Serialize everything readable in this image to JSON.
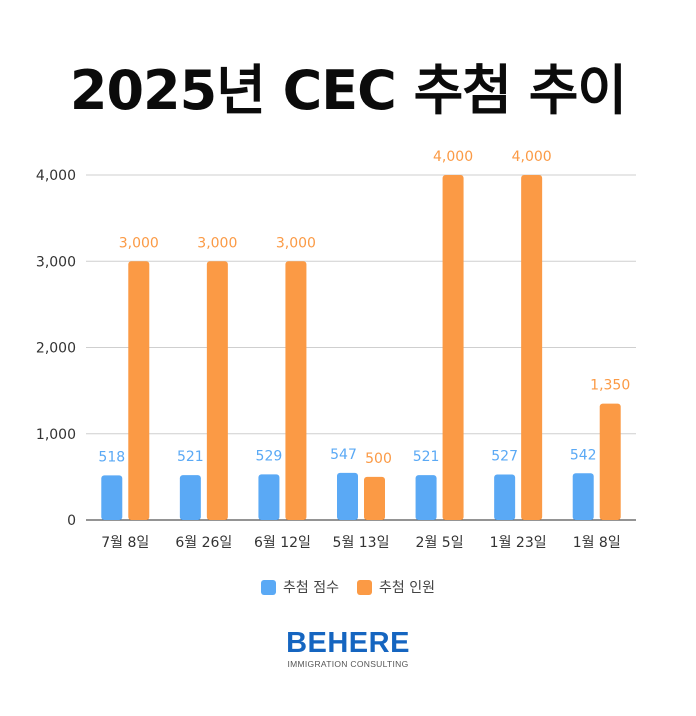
{
  "title": "2025년 CEC 추첨 추이",
  "chart_data": {
    "type": "bar",
    "categories": [
      "7월 8일",
      "6월 26일",
      "6월 12일",
      "5월 13일",
      "2월 5일",
      "1월 23일",
      "1월 8일"
    ],
    "series": [
      {
        "name": "추첨 점수",
        "color": "#5aa9f5",
        "values": [
          518,
          521,
          529,
          547,
          521,
          527,
          542
        ],
        "labels": [
          "518",
          "521",
          "529",
          "547",
          "521",
          "527",
          "542"
        ]
      },
      {
        "name": "추첨 인원",
        "color": "#fb9a45",
        "values": [
          3000,
          3000,
          3000,
          500,
          4000,
          4000,
          1350
        ],
        "labels": [
          "3,000",
          "3,000",
          "3,000",
          "500",
          "4,000",
          "4,000",
          "1,350"
        ]
      }
    ],
    "ylim": [
      0,
      4000
    ],
    "yticks": [
      0,
      1000,
      2000,
      3000,
      4000
    ],
    "ytick_labels": [
      "0",
      "1,000",
      "2,000",
      "3,000",
      "4,000"
    ],
    "grid": true,
    "legend_position": "bottom"
  },
  "logo": {
    "main": "BEHERE",
    "sub": "IMMIGRATION CONSULTING"
  }
}
